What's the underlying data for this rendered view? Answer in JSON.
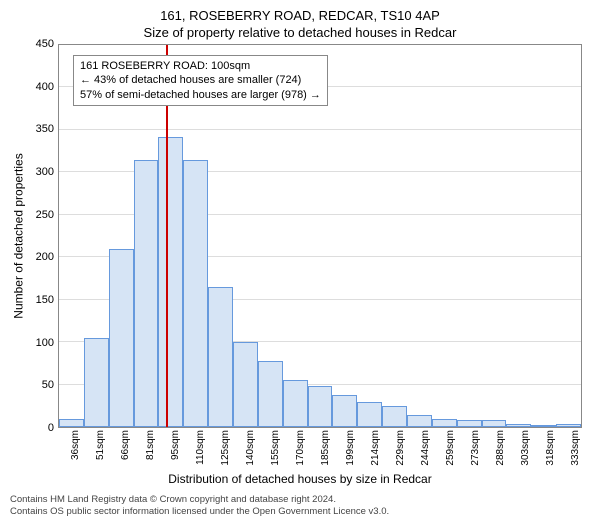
{
  "title_line1": "161, ROSEBERRY ROAD, REDCAR, TS10 4AP",
  "title_line2": "Size of property relative to detached houses in Redcar",
  "chart": {
    "type": "histogram",
    "ylabel": "Number of detached properties",
    "xlabel": "Distribution of detached houses by size in Redcar",
    "ylim": [
      0,
      450
    ],
    "ytick_step": 50,
    "yticks": [
      0,
      50,
      100,
      150,
      200,
      250,
      300,
      350,
      400,
      450
    ],
    "x_categories": [
      "36sqm",
      "51sqm",
      "66sqm",
      "81sqm",
      "95sqm",
      "110sqm",
      "125sqm",
      "140sqm",
      "155sqm",
      "170sqm",
      "185sqm",
      "199sqm",
      "214sqm",
      "229sqm",
      "244sqm",
      "259sqm",
      "273sqm",
      "288sqm",
      "303sqm",
      "318sqm",
      "333sqm"
    ],
    "bar_values": [
      10,
      105,
      210,
      315,
      342,
      315,
      165,
      100,
      78,
      55,
      48,
      38,
      30,
      25,
      14,
      10,
      8,
      8,
      4,
      0,
      3
    ],
    "bar_fill": "#d6e4f5",
    "bar_border": "#6699dd",
    "background_color": "#ffffff",
    "grid_color": "#dddddd",
    "axis_color": "#888888",
    "label_fontsize": 12,
    "tick_fontsize": 11,
    "title_fontsize": 13,
    "marker": {
      "position_category_index": 4.3,
      "color": "#cc0000",
      "lines": [
        "161 ROSEBERRY ROAD: 100sqm",
        "← 43% of detached houses are smaller (724)",
        "57% of semi-detached houses are larger (978) →"
      ]
    }
  },
  "footer_line1": "Contains HM Land Registry data © Crown copyright and database right 2024.",
  "footer_line2": "Contains OS public sector information licensed under the Open Government Licence v3.0.",
  "colors": {
    "text": "#000000",
    "footer_text": "#444444"
  }
}
